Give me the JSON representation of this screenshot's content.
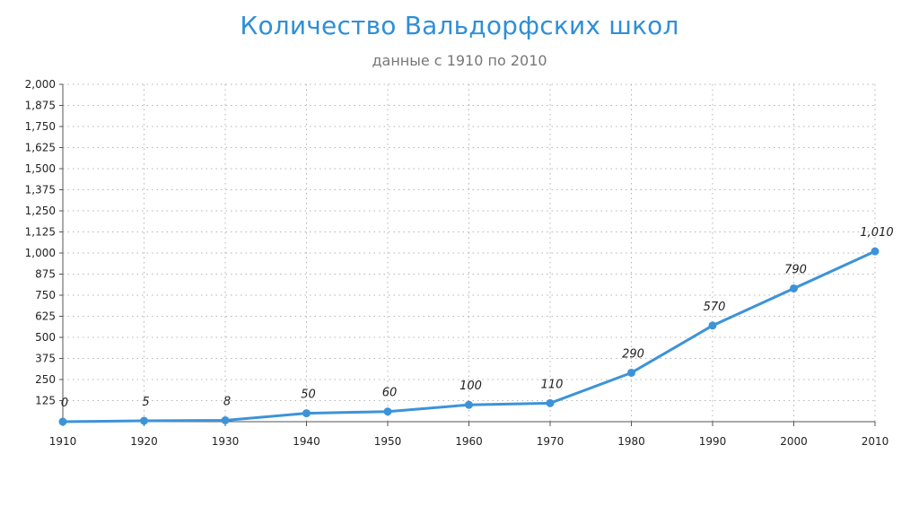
{
  "chart_data": {
    "type": "line",
    "title": "Количество Вальдорфских школ",
    "subtitle": "данные с 1910 по 2010",
    "xlabel": "",
    "ylabel": "",
    "x": [
      "1910",
      "1920",
      "1930",
      "1940",
      "1950",
      "1960",
      "1970",
      "1980",
      "1990",
      "2000",
      "2010"
    ],
    "series": [
      {
        "values": [
          0,
          5,
          8,
          50,
          60,
          100,
          110,
          290,
          570,
          790,
          1010
        ],
        "labels": [
          "0",
          "5",
          "8",
          "50",
          "60",
          "100",
          "110",
          "290",
          "570",
          "790",
          "1,010"
        ]
      }
    ],
    "ylim": [
      0,
      2000
    ],
    "yticks": [
      125,
      250,
      375,
      500,
      625,
      750,
      875,
      1000,
      1125,
      1250,
      1375,
      1500,
      1625,
      1750,
      1875,
      2000
    ],
    "ytick_labels": [
      "125",
      "250",
      "375",
      "500",
      "625",
      "750",
      "875",
      "1,000",
      "1,125",
      "1,250",
      "1,375",
      "1,500",
      "1,625",
      "1,750",
      "1,875",
      "2,000"
    ],
    "grid": true,
    "legend": "none",
    "colors": {
      "line": "#3d93d8",
      "title": "#2f8fd6",
      "grid": "#b5b5b5",
      "axis": "#555555"
    }
  }
}
